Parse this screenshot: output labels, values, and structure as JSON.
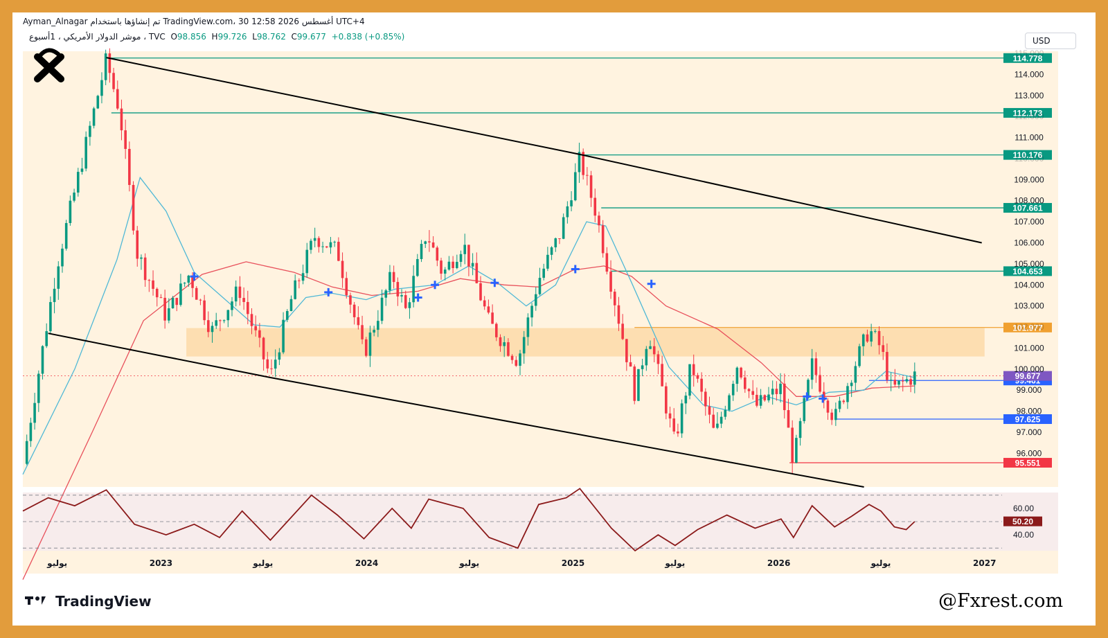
{
  "header": {
    "author_line": "Ayman_Alnagar تم إنشاؤها باستخدام TradingView.com، 30 أغسطس 2026 12:58 UTC+4",
    "symbol_line": "موشر الدولار الأمريكي ، 1أسبوع ، TVC",
    "open_label": "O",
    "open": "98.856",
    "high_label": "H",
    "high": "99.726",
    "low_label": "L",
    "low": "98.762",
    "close_label": "C",
    "close": "99.677",
    "change": "+0.838 (+0.85%)",
    "currency": "USD"
  },
  "footer": {
    "brand": "TradingView",
    "watermark": "@Fxrest.com"
  },
  "colors": {
    "frame": "#e29c3c",
    "bull": "#089981",
    "bear": "#f23645",
    "zone": "#fdd9a8",
    "background_band": "#fff3e0",
    "ma_fast": "#4fb8d6",
    "ma_slow": "#e8505b",
    "level_line": "#089981",
    "rsi_line": "#8b1a1a",
    "trendline": "#000000",
    "marker": "#2962ff"
  },
  "chart_data": {
    "type": "candlestick",
    "timeframe": "1W",
    "ylim": [
      94.4,
      115.1
    ],
    "xlim": [
      "2022-05-01",
      "2027-02-01"
    ],
    "y_ticks": [
      "96.000",
      "97.000",
      "98.000",
      "99.000",
      "100.000",
      "101.000",
      "102.000",
      "103.000",
      "104.000",
      "105.000",
      "106.000",
      "107.000",
      "108.000",
      "109.000",
      "110.000",
      "111.000",
      "112.000",
      "113.000",
      "114.000",
      "115.000"
    ],
    "x_ticks": [
      {
        "label": "يوليو",
        "date": "2022-07-01"
      },
      {
        "label": "2023",
        "date": "2023-01-01"
      },
      {
        "label": "يوليو",
        "date": "2023-07-01"
      },
      {
        "label": "2024",
        "date": "2024-01-01"
      },
      {
        "label": "يوليو",
        "date": "2024-07-01"
      },
      {
        "label": "2025",
        "date": "2025-01-01"
      },
      {
        "label": "يوليو",
        "date": "2025-07-01"
      },
      {
        "label": "2026",
        "date": "2026-01-01"
      },
      {
        "label": "يوليو",
        "date": "2026-07-01"
      },
      {
        "label": "2027",
        "date": "2027-01-01"
      }
    ],
    "price_path": [
      [
        "2022-05-01",
        95.5
      ],
      [
        "2022-07-01",
        105.0
      ],
      [
        "2022-09-26",
        114.7
      ],
      [
        "2022-10-20",
        112.2
      ],
      [
        "2022-11-20",
        105.5
      ],
      [
        "2023-01-10",
        102.5
      ],
      [
        "2023-02-20",
        104.5
      ],
      [
        "2023-04-01",
        101.8
      ],
      [
        "2023-05-20",
        103.8
      ],
      [
        "2023-07-14",
        99.6
      ],
      [
        "2023-08-20",
        103.3
      ],
      [
        "2023-10-01",
        106.3
      ],
      [
        "2023-11-10",
        105.6
      ],
      [
        "2023-12-27",
        100.7
      ],
      [
        "2024-02-15",
        104.5
      ],
      [
        "2024-03-10",
        102.8
      ],
      [
        "2024-04-16",
        106.5
      ],
      [
        "2024-05-15",
        104.5
      ],
      [
        "2024-06-20",
        106.0
      ],
      [
        "2024-08-05",
        102.2
      ],
      [
        "2024-09-25",
        100.4
      ],
      [
        "2024-10-31",
        104.2
      ],
      [
        "2024-12-10",
        106.5
      ],
      [
        "2025-01-13",
        110.0
      ],
      [
        "2025-02-10",
        107.5
      ],
      [
        "2025-03-10",
        104.0
      ],
      [
        "2025-04-21",
        98.8
      ],
      [
        "2025-05-15",
        101.8
      ],
      [
        "2025-06-30",
        96.5
      ],
      [
        "2025-07-30",
        100.2
      ],
      [
        "2025-09-10",
        96.8
      ],
      [
        "2025-10-20",
        100.3
      ],
      [
        "2025-11-20",
        98.2
      ],
      [
        "2026-01-05",
        99.1
      ],
      [
        "2026-01-27",
        95.6
      ],
      [
        "2026-03-01",
        100.2
      ],
      [
        "2026-04-10",
        97.6
      ],
      [
        "2026-05-10",
        99.8
      ],
      [
        "2026-06-10",
        101.9
      ],
      [
        "2026-07-01",
        101.0
      ],
      [
        "2026-07-20",
        99.0
      ],
      [
        "2026-08-30",
        99.7
      ]
    ],
    "levels": [
      {
        "value": 114.778,
        "label": "114.778",
        "color": "#089981",
        "from": "2022-09-26"
      },
      {
        "value": 112.173,
        "label": "112.173",
        "color": "#089981",
        "from": "2022-10-05"
      },
      {
        "value": 110.176,
        "label": "110.176",
        "color": "#089981",
        "from": "2025-01-10"
      },
      {
        "value": 107.661,
        "label": "107.661",
        "color": "#089981",
        "from": "2025-02-20"
      },
      {
        "value": 104.653,
        "label": "104.653",
        "color": "#089981",
        "from": "2025-03-10"
      },
      {
        "value": 101.977,
        "label": "101.977",
        "color": "#f0a030",
        "from": "2025-04-20"
      },
      {
        "value": 99.461,
        "label": "99.461",
        "color": "#2962ff",
        "from": "2026-06-10"
      },
      {
        "value": 97.625,
        "label": "97.625",
        "color": "#2962ff",
        "from": "2026-04-10"
      },
      {
        "value": 95.551,
        "label": "95.551",
        "color": "#f23645",
        "from": "2026-01-20"
      }
    ],
    "current_price": {
      "value": 99.677,
      "label": "99.677",
      "color": "#7e57c2"
    },
    "zone": {
      "from": 100.6,
      "to": 101.95,
      "start": "2023-02-15",
      "end": "2027-01-01"
    },
    "trendlines": [
      {
        "points": [
          [
            "2022-09-26",
            114.8
          ],
          [
            "2025-01-13",
            110.2
          ],
          [
            "2026-12-27",
            106.0
          ]
        ]
      },
      {
        "points": [
          [
            "2022-06-15",
            101.7
          ],
          [
            "2023-07-14",
            99.6
          ],
          [
            "2026-06-01",
            94.4
          ]
        ]
      }
    ],
    "markers": [
      [
        "2023-03-01",
        104.4
      ],
      [
        "2023-10-25",
        103.65
      ],
      [
        "2024-04-01",
        103.4
      ],
      [
        "2024-05-01",
        104.0
      ],
      [
        "2024-08-15",
        104.1
      ],
      [
        "2025-01-05",
        104.75
      ],
      [
        "2025-05-20",
        104.05
      ],
      [
        "2026-02-20",
        98.7
      ],
      [
        "2026-03-20",
        98.6
      ]
    ],
    "ma_fast_path": [
      [
        "2022-05-01",
        95.0
      ],
      [
        "2022-08-01",
        100.0
      ],
      [
        "2022-10-15",
        105.2
      ],
      [
        "2022-11-25",
        109.1
      ],
      [
        "2023-01-10",
        107.5
      ],
      [
        "2023-03-01",
        104.6
      ],
      [
        "2023-06-15",
        102.1
      ],
      [
        "2023-07-31",
        102.0
      ],
      [
        "2023-09-15",
        103.4
      ],
      [
        "2023-11-01",
        103.6
      ],
      [
        "2023-12-31",
        103.3
      ],
      [
        "2024-02-20",
        103.8
      ],
      [
        "2024-05-01",
        104.0
      ],
      [
        "2024-06-30",
        104.9
      ],
      [
        "2024-08-20",
        104.1
      ],
      [
        "2024-10-10",
        103.0
      ],
      [
        "2024-12-01",
        104.0
      ],
      [
        "2025-01-25",
        107.0
      ],
      [
        "2025-02-28",
        106.8
      ],
      [
        "2025-04-15",
        104.1
      ],
      [
        "2025-06-20",
        100.1
      ],
      [
        "2025-08-20",
        98.3
      ],
      [
        "2025-10-10",
        98.0
      ],
      [
        "2025-12-10",
        98.7
      ],
      [
        "2026-02-01",
        98.3
      ],
      [
        "2026-03-31",
        98.9
      ],
      [
        "2026-06-01",
        99.0
      ],
      [
        "2026-07-10",
        99.9
      ],
      [
        "2026-08-30",
        99.6
      ]
    ],
    "ma_slow_path": [
      [
        "2022-05-01",
        90.0
      ],
      [
        "2022-09-01",
        97.0
      ],
      [
        "2022-12-01",
        102.3
      ],
      [
        "2023-03-15",
        104.5
      ],
      [
        "2023-06-01",
        105.1
      ],
      [
        "2023-08-25",
        104.6
      ],
      [
        "2023-11-01",
        103.9
      ],
      [
        "2024-01-10",
        103.5
      ],
      [
        "2024-04-01",
        103.7
      ],
      [
        "2024-06-15",
        104.3
      ],
      [
        "2024-09-01",
        104.0
      ],
      [
        "2024-11-01",
        103.9
      ],
      [
        "2025-01-01",
        104.7
      ],
      [
        "2025-02-25",
        104.9
      ],
      [
        "2025-04-15",
        104.4
      ],
      [
        "2025-06-15",
        103.0
      ],
      [
        "2025-09-15",
        101.9
      ],
      [
        "2025-12-01",
        100.3
      ],
      [
        "2026-02-01",
        98.7
      ],
      [
        "2026-04-10",
        98.7
      ],
      [
        "2026-06-15",
        99.1
      ],
      [
        "2026-08-30",
        99.2
      ]
    ],
    "rsi": {
      "ylim": [
        28,
        72
      ],
      "ticks": [
        "40.00",
        "60.00"
      ],
      "levels": [
        30,
        50,
        70
      ],
      "value": 50.2,
      "value_label": "50.20",
      "path": [
        [
          "2022-05-01",
          58
        ],
        [
          "2022-06-15",
          68
        ],
        [
          "2022-08-01",
          62
        ],
        [
          "2022-09-26",
          74
        ],
        [
          "2022-11-15",
          48
        ],
        [
          "2023-01-10",
          40
        ],
        [
          "2023-03-01",
          48
        ],
        [
          "2023-04-15",
          38
        ],
        [
          "2023-05-25",
          58
        ],
        [
          "2023-07-14",
          36
        ],
        [
          "2023-09-25",
          70
        ],
        [
          "2023-11-10",
          55
        ],
        [
          "2023-12-27",
          37
        ],
        [
          "2024-02-15",
          60
        ],
        [
          "2024-03-20",
          45
        ],
        [
          "2024-04-20",
          67
        ],
        [
          "2024-06-20",
          60
        ],
        [
          "2024-08-05",
          38
        ],
        [
          "2024-09-25",
          30
        ],
        [
          "2024-11-01",
          63
        ],
        [
          "2024-12-20",
          68
        ],
        [
          "2025-01-13",
          75
        ],
        [
          "2025-03-10",
          45
        ],
        [
          "2025-04-21",
          28
        ],
        [
          "2025-06-01",
          40
        ],
        [
          "2025-07-01",
          32
        ],
        [
          "2025-08-10",
          44
        ],
        [
          "2025-10-01",
          55
        ],
        [
          "2025-11-20",
          45
        ],
        [
          "2026-01-05",
          52
        ],
        [
          "2026-01-27",
          38
        ],
        [
          "2026-03-01",
          62
        ],
        [
          "2026-04-10",
          46
        ],
        [
          "2026-05-10",
          54
        ],
        [
          "2026-06-10",
          63
        ],
        [
          "2026-07-01",
          58
        ],
        [
          "2026-07-25",
          46
        ],
        [
          "2026-08-15",
          44
        ],
        [
          "2026-08-30",
          50
        ]
      ]
    }
  }
}
